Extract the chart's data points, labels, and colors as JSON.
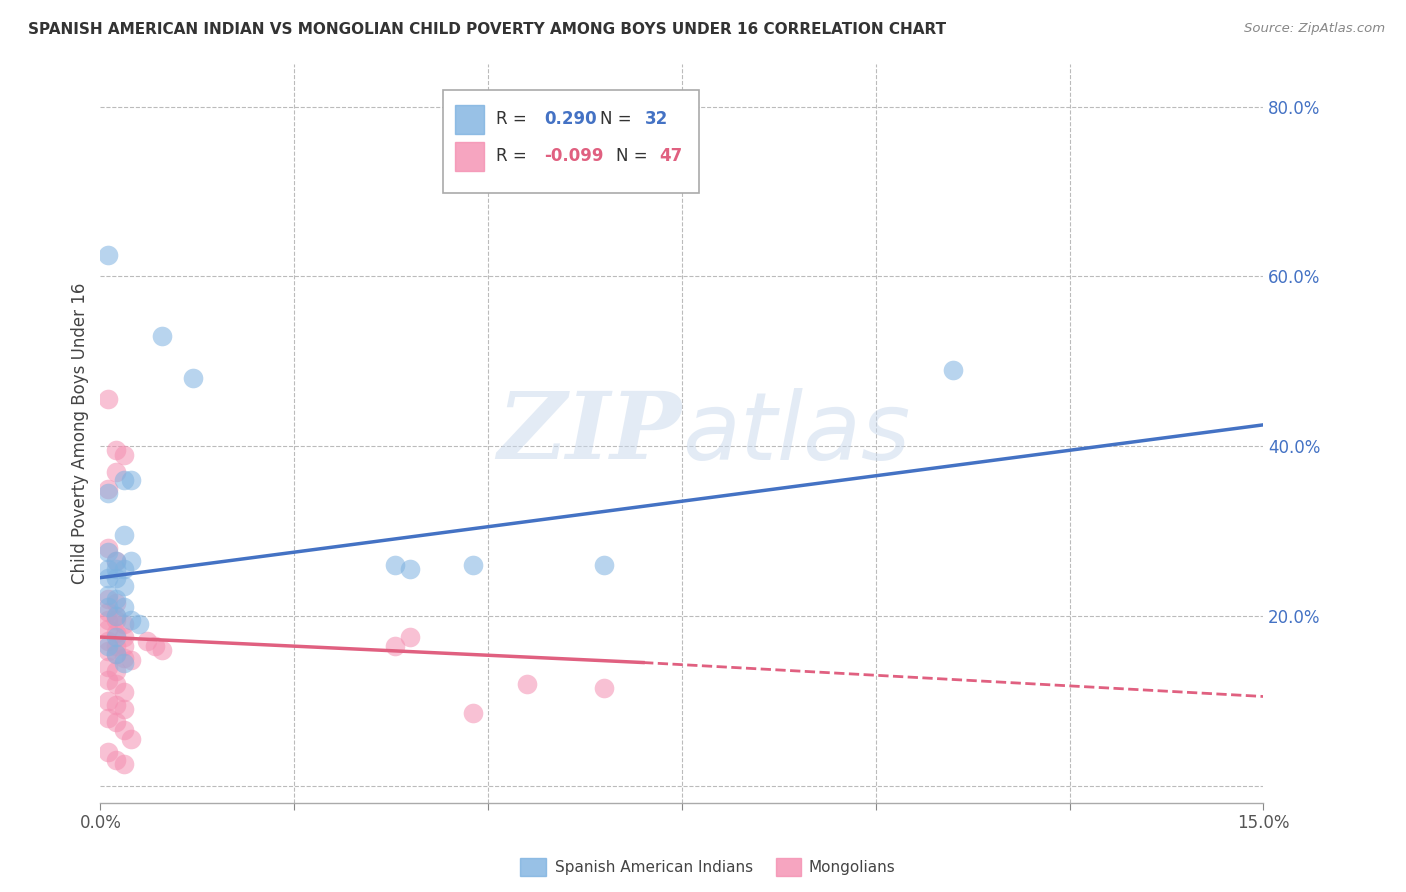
{
  "title": "SPANISH AMERICAN INDIAN VS MONGOLIAN CHILD POVERTY AMONG BOYS UNDER 16 CORRELATION CHART",
  "source": "Source: ZipAtlas.com",
  "ylabel": "Child Poverty Among Boys Under 16",
  "xlim": [
    0.0,
    0.15
  ],
  "ylim": [
    -0.02,
    0.85
  ],
  "blue_R": 0.29,
  "blue_N": 32,
  "pink_R": -0.099,
  "pink_N": 47,
  "blue_color": "#7EB2E0",
  "pink_color": "#F48FB1",
  "blue_line_color": "#4472C4",
  "pink_line_color": "#E06080",
  "watermark_zip": "ZIP",
  "watermark_atlas": "atlas",
  "blue_line": [
    [
      0.0,
      0.245
    ],
    [
      0.15,
      0.425
    ]
  ],
  "pink_line_solid": [
    [
      0.0,
      0.175
    ],
    [
      0.07,
      0.145
    ]
  ],
  "pink_line_dash": [
    [
      0.07,
      0.145
    ],
    [
      0.15,
      0.105
    ]
  ],
  "blue_scatter": [
    [
      0.001,
      0.625
    ],
    [
      0.008,
      0.53
    ],
    [
      0.012,
      0.48
    ],
    [
      0.001,
      0.345
    ],
    [
      0.003,
      0.36
    ],
    [
      0.001,
      0.275
    ],
    [
      0.002,
      0.265
    ],
    [
      0.004,
      0.36
    ],
    [
      0.001,
      0.255
    ],
    [
      0.002,
      0.245
    ],
    [
      0.003,
      0.255
    ],
    [
      0.003,
      0.235
    ],
    [
      0.001,
      0.225
    ],
    [
      0.002,
      0.22
    ],
    [
      0.001,
      0.21
    ],
    [
      0.003,
      0.21
    ],
    [
      0.002,
      0.2
    ],
    [
      0.004,
      0.195
    ],
    [
      0.005,
      0.19
    ],
    [
      0.002,
      0.175
    ],
    [
      0.001,
      0.165
    ],
    [
      0.002,
      0.155
    ],
    [
      0.003,
      0.145
    ],
    [
      0.001,
      0.245
    ],
    [
      0.002,
      0.255
    ],
    [
      0.004,
      0.265
    ],
    [
      0.038,
      0.26
    ],
    [
      0.04,
      0.255
    ],
    [
      0.048,
      0.26
    ],
    [
      0.065,
      0.26
    ],
    [
      0.11,
      0.49
    ],
    [
      0.003,
      0.295
    ]
  ],
  "pink_scatter": [
    [
      0.001,
      0.455
    ],
    [
      0.001,
      0.35
    ],
    [
      0.002,
      0.395
    ],
    [
      0.002,
      0.37
    ],
    [
      0.003,
      0.39
    ],
    [
      0.001,
      0.28
    ],
    [
      0.002,
      0.265
    ],
    [
      0.001,
      0.22
    ],
    [
      0.002,
      0.215
    ],
    [
      0.001,
      0.205
    ],
    [
      0.002,
      0.2
    ],
    [
      0.001,
      0.195
    ],
    [
      0.002,
      0.195
    ],
    [
      0.003,
      0.19
    ],
    [
      0.001,
      0.185
    ],
    [
      0.002,
      0.18
    ],
    [
      0.003,
      0.175
    ],
    [
      0.001,
      0.17
    ],
    [
      0.002,
      0.165
    ],
    [
      0.003,
      0.165
    ],
    [
      0.001,
      0.158
    ],
    [
      0.002,
      0.155
    ],
    [
      0.003,
      0.15
    ],
    [
      0.004,
      0.148
    ],
    [
      0.001,
      0.14
    ],
    [
      0.002,
      0.135
    ],
    [
      0.001,
      0.125
    ],
    [
      0.002,
      0.12
    ],
    [
      0.003,
      0.11
    ],
    [
      0.001,
      0.1
    ],
    [
      0.002,
      0.095
    ],
    [
      0.003,
      0.09
    ],
    [
      0.001,
      0.08
    ],
    [
      0.002,
      0.075
    ],
    [
      0.003,
      0.065
    ],
    [
      0.004,
      0.055
    ],
    [
      0.001,
      0.04
    ],
    [
      0.002,
      0.03
    ],
    [
      0.003,
      0.025
    ],
    [
      0.038,
      0.165
    ],
    [
      0.04,
      0.175
    ],
    [
      0.048,
      0.085
    ],
    [
      0.055,
      0.12
    ],
    [
      0.065,
      0.115
    ],
    [
      0.006,
      0.17
    ],
    [
      0.007,
      0.165
    ],
    [
      0.008,
      0.16
    ]
  ]
}
